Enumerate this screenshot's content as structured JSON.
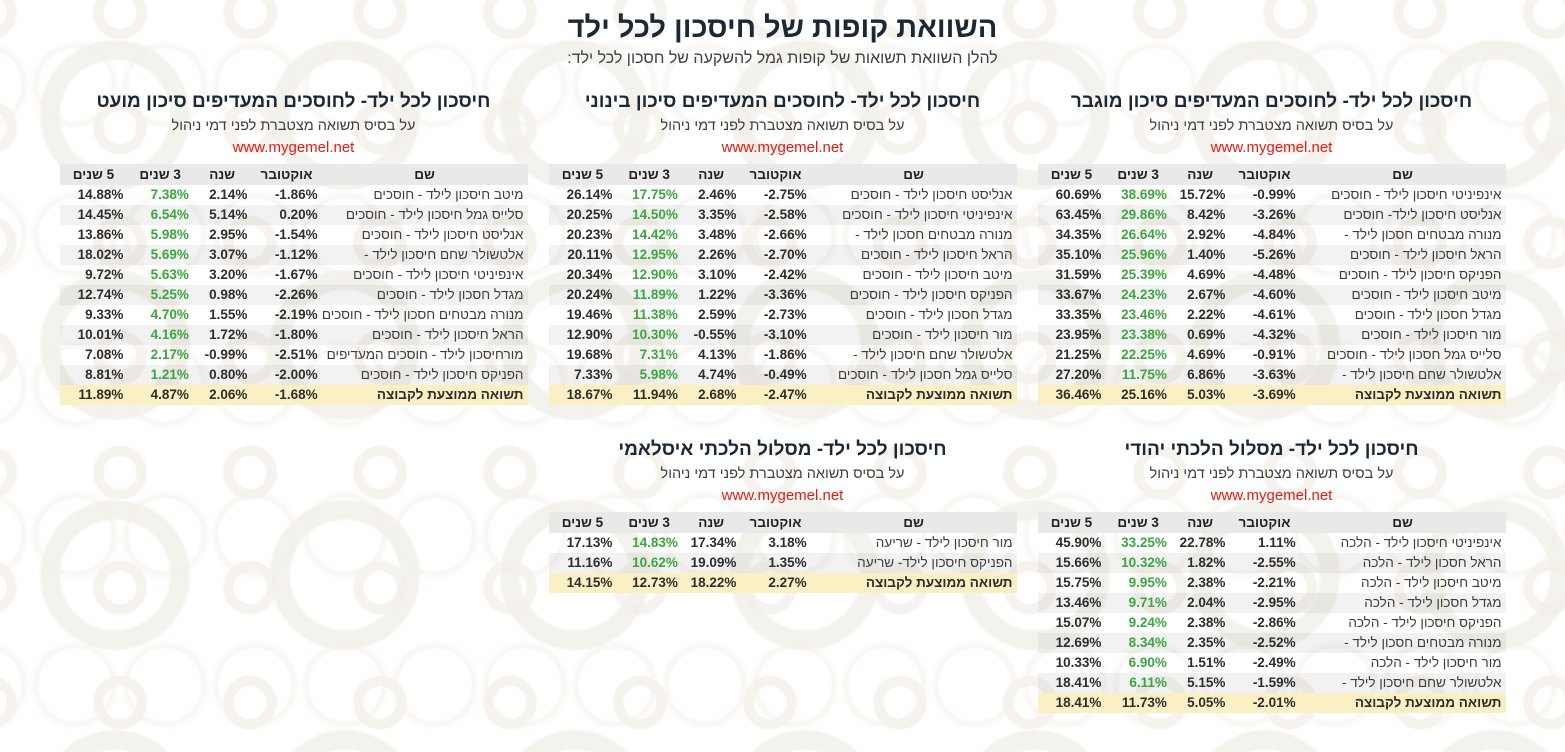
{
  "page": {
    "title": "השוואת קופות של חיסכון לכל ילד",
    "subtitle": "להלן השוואת תשואות של קופות גמל להשקעה של חסכון לכל ילד:"
  },
  "common": {
    "table_subtitle": "על בסיס תשואה מצטברת לפני דמי ניהול",
    "website_link": "www.mygemel.net",
    "columns": [
      "שם",
      "אוקטובר",
      "שנה",
      "3 שנים",
      "5 שנים"
    ],
    "average_label": "תשואה ממוצעת לקבוצה"
  },
  "colors": {
    "title_color": "#1b2836",
    "link_red": "#e8190f",
    "accent_green": "#3aa63e",
    "header_bg": "#e9e9e9",
    "average_bg": "#fbf0c4"
  },
  "tables": [
    {
      "id": "high-risk",
      "title": "חיסכון לכל ילד- לחוסכים המעדיפים סיכון מוגבר",
      "rows": [
        [
          "אינפיניטי חיסכון לילד - חוסכים",
          "-0.99%",
          "15.72%",
          "38.69%",
          "60.69%"
        ],
        [
          "אנליסט חיסכון לילד- חוסכים",
          "-3.26%",
          "8.42%",
          "29.86%",
          "63.45%"
        ],
        [
          "מנורה מבטחים חסכון לילד -",
          "-4.84%",
          "2.92%",
          "26.64%",
          "34.35%"
        ],
        [
          "הראל חיסכון לילד - חוסכים",
          "-5.26%",
          "1.40%",
          "25.96%",
          "35.10%"
        ],
        [
          "הפניקס חיסכון לילד - חוסכים",
          "-4.48%",
          "4.69%",
          "25.39%",
          "31.59%"
        ],
        [
          "מיטב חיסכון לילד - חוסכים",
          "-4.60%",
          "2.67%",
          "24.23%",
          "33.67%"
        ],
        [
          "מגדל חסכון לילד - חוסכים",
          "-4.61%",
          "2.22%",
          "23.46%",
          "33.35%"
        ],
        [
          "מור חיסכון לילד - חוסכים",
          "-4.32%",
          "0.69%",
          "23.38%",
          "23.95%"
        ],
        [
          "סלייס גמל חסכון לילד - חוסכים",
          "-0.91%",
          "4.69%",
          "22.25%",
          "21.25%"
        ],
        [
          "אלטשולר שחם חיסכון לילד -",
          "-3.63%",
          "6.86%",
          "11.75%",
          "27.20%"
        ]
      ],
      "average": [
        "-3.69%",
        "5.03%",
        "25.16%",
        "36.46%"
      ]
    },
    {
      "id": "medium-risk",
      "title": "חיסכון לכל ילד- לחוסכים המעדיפים סיכון בינוני",
      "rows": [
        [
          "אנליסט חיסכון לילד - חוסכים",
          "-2.75%",
          "2.46%",
          "17.75%",
          "26.14%"
        ],
        [
          "אינפיניטי חיסכון לילד - חוסכים",
          "-2.58%",
          "3.35%",
          "14.50%",
          "20.25%"
        ],
        [
          "מנורה מבטחים חסכון לילד -",
          "-2.66%",
          "3.48%",
          "14.42%",
          "20.23%"
        ],
        [
          "הראל חיסכון לילד - חוסכים",
          "-2.70%",
          "2.26%",
          "12.95%",
          "20.11%"
        ],
        [
          "מיטב חיסכון לילד - חוסכים",
          "-2.42%",
          "3.10%",
          "12.90%",
          "20.34%"
        ],
        [
          "הפניקס חיסכון לילד - חוסכים",
          "-3.36%",
          "1.22%",
          "11.89%",
          "20.24%"
        ],
        [
          "מגדל חסכון לילד - חוסכים",
          "-2.73%",
          "2.59%",
          "11.38%",
          "19.46%"
        ],
        [
          "מור חיסכון לילד - חוסכים",
          "-3.10%",
          "-0.55%",
          "10.30%",
          "12.90%"
        ],
        [
          "אלטשולר שחם חיסכון לילד -",
          "-1.86%",
          "4.13%",
          "7.31%",
          "19.68%"
        ],
        [
          "סלייס גמל חסכון לילד - חוסכים",
          "-0.49%",
          "4.74%",
          "5.98%",
          "7.33%"
        ]
      ],
      "average": [
        "-2.47%",
        "2.68%",
        "11.94%",
        "18.67%"
      ]
    },
    {
      "id": "low-risk",
      "title": "חיסכון לכל ילד- לחוסכים המעדיפים סיכון מועט",
      "rows": [
        [
          "מיטב חיסכון לילד - חוסכים",
          "-1.86%",
          "2.14%",
          "7.38%",
          "14.88%"
        ],
        [
          "סלייס גמל חיסכון לילד - חוסכים",
          "0.20%",
          "5.14%",
          "6.54%",
          "14.45%"
        ],
        [
          "אנליסט חיסכון לילד - חוסכים",
          "-1.54%",
          "2.95%",
          "5.98%",
          "13.86%"
        ],
        [
          "אלטשולר שחם חיסכון לילד -",
          "-1.12%",
          "3.07%",
          "5.69%",
          "18.02%"
        ],
        [
          "אינפיניטי חיסכון לילד - חוסכים",
          "-1.67%",
          "3.20%",
          "5.63%",
          "9.72%"
        ],
        [
          "מגדל חסכון לילד - חוסכים",
          "-2.26%",
          "0.98%",
          "5.25%",
          "12.74%"
        ],
        [
          "מנורה מבטחים חסכון לילד - חוסכים",
          "-2.19%",
          "1.55%",
          "4.70%",
          "9.33%"
        ],
        [
          "הראל חיסכון לילד - חוסכים",
          "-1.80%",
          "1.72%",
          "4.16%",
          "10.01%"
        ],
        [
          "מורחיסכון לילד - חוסכים המעדיפים",
          "-2.51%",
          "-0.99%",
          "2.17%",
          "7.08%"
        ],
        [
          "הפניקס חיסכון לילד - חוסכים",
          "-2.00%",
          "0.80%",
          "1.21%",
          "8.81%"
        ]
      ],
      "average": [
        "-1.68%",
        "2.06%",
        "4.87%",
        "11.89%"
      ]
    },
    {
      "id": "jewish-halacha",
      "title": "חיסכון לכל ילד- מסלול הלכתי יהודי",
      "rows": [
        [
          "אינפיניטי חיסכון לילד - הלכה",
          "1.11%",
          "22.78%",
          "33.25%",
          "45.90%"
        ],
        [
          "הראל חסכון לילד - הלכה",
          "-2.55%",
          "1.82%",
          "10.32%",
          "15.66%"
        ],
        [
          "מיטב חיסכון לילד - הלכה",
          "-2.21%",
          "2.38%",
          "9.95%",
          "15.75%"
        ],
        [
          "מגדל חסכון לילד - הלכה",
          "-2.95%",
          "2.04%",
          "9.71%",
          "13.46%"
        ],
        [
          "הפניקס חיסכון לילד - הלכה",
          "-2.86%",
          "2.38%",
          "9.24%",
          "15.07%"
        ],
        [
          "מנורה מבטחים חסכון לילד -",
          "-2.52%",
          "2.35%",
          "8.34%",
          "12.69%"
        ],
        [
          "מור חיסכון לילד - הלכה",
          "-2.49%",
          "1.51%",
          "6.90%",
          "10.33%"
        ],
        [
          "אלטשולר שחם חיסכון לילד -",
          "-1.59%",
          "5.15%",
          "6.11%",
          "18.41%"
        ]
      ],
      "average": [
        "-2.01%",
        "5.05%",
        "11.73%",
        "18.41%"
      ]
    },
    {
      "id": "islamic-halacha",
      "title": "חיסכון לכל ילד- מסלול הלכתי איסלאמי",
      "rows": [
        [
          "מור חיסכון לילד - שריעה",
          "3.18%",
          "17.34%",
          "14.83%",
          "17.13%"
        ],
        [
          "הפניקס חיסכון לילד- שריעה",
          "1.35%",
          "19.09%",
          "10.62%",
          "11.16%"
        ]
      ],
      "average": [
        "2.27%",
        "18.22%",
        "12.73%",
        "14.15%"
      ]
    }
  ]
}
